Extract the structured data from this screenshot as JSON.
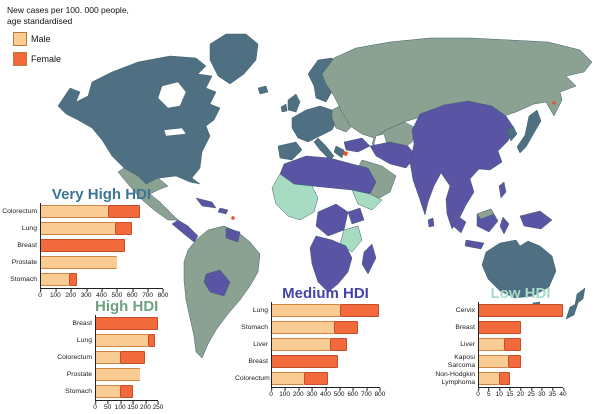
{
  "legend": {
    "title_line1": "New cases per 100. 000 people,",
    "title_line2": "age standardised",
    "items": [
      {
        "label": "Male",
        "color": "#f8cc92"
      },
      {
        "label": "Female",
        "color": "#f2693b"
      }
    ]
  },
  "map": {
    "colors": {
      "very_high": "#4e7082",
      "high": "#8ba293",
      "medium": "#5a54a4",
      "low": "#a8dcc2",
      "highlight": "#e8502a"
    },
    "categories": [
      {
        "label": "Very High HDI",
        "color_key": "very_high"
      },
      {
        "label": "High HDI",
        "color_key": "high"
      },
      {
        "label": "Medium HDI",
        "color_key": "medium"
      },
      {
        "label": "Low HDI",
        "color_key": "low"
      }
    ]
  },
  "chart_data": [
    {
      "type": "bar",
      "orientation": "horizontal",
      "title": "Very High HDI",
      "title_color": "#3c7595",
      "categories": [
        "Colorectum",
        "Lung",
        "Breast",
        "Prostate",
        "Stomach"
      ],
      "series": [
        {
          "name": "Male",
          "values": [
            440,
            490,
            0,
            500,
            190
          ]
        },
        {
          "name": "Female",
          "values": [
            210,
            110,
            550,
            0,
            50
          ]
        }
      ],
      "xlim": [
        0,
        800
      ],
      "xticks": [
        0,
        100,
        200,
        300,
        400,
        500,
        600,
        700,
        800
      ],
      "grid": false,
      "legend_position": "none"
    },
    {
      "type": "bar",
      "orientation": "horizontal",
      "title": "High HDI",
      "title_color": "#6fa182",
      "categories": [
        "Breast",
        "Lung",
        "Colorectum",
        "Prostate",
        "Stomach"
      ],
      "series": [
        {
          "name": "Male",
          "values": [
            0,
            210,
            100,
            180,
            100
          ]
        },
        {
          "name": "Female",
          "values": [
            250,
            30,
            100,
            0,
            50
          ]
        }
      ],
      "xlim": [
        0,
        250
      ],
      "xticks": [
        0,
        50,
        100,
        150,
        200,
        250
      ],
      "grid": false,
      "legend_position": "none"
    },
    {
      "type": "bar",
      "orientation": "horizontal",
      "title": "Medium HDI",
      "title_color": "#4443aa",
      "categories": [
        "Lung",
        "Stomach",
        "Liver",
        "Breast",
        "Colorectum"
      ],
      "series": [
        {
          "name": "Male",
          "values": [
            510,
            460,
            430,
            0,
            240
          ]
        },
        {
          "name": "Female",
          "values": [
            280,
            180,
            130,
            490,
            180
          ]
        }
      ],
      "xlim": [
        0,
        800
      ],
      "xticks": [
        0,
        100,
        200,
        300,
        400,
        500,
        600,
        700,
        800
      ],
      "grid": false,
      "legend_position": "none"
    },
    {
      "type": "bar",
      "orientation": "horizontal",
      "title": "Low HDI",
      "title_color": "#a7dcc8",
      "categories": [
        "Cervix",
        "Breast",
        "Liver",
        "Kaposi Sarcoma",
        "Non-Hodgkin Lymphoma"
      ],
      "series": [
        {
          "name": "Male",
          "values": [
            0,
            0,
            12,
            14,
            10
          ]
        },
        {
          "name": "Female",
          "values": [
            40,
            20,
            8,
            6,
            5
          ]
        }
      ],
      "xlim": [
        0,
        40
      ],
      "xticks": [
        0,
        5,
        10,
        15,
        20,
        25,
        30,
        35,
        40
      ],
      "grid": false,
      "legend_position": "none"
    }
  ]
}
